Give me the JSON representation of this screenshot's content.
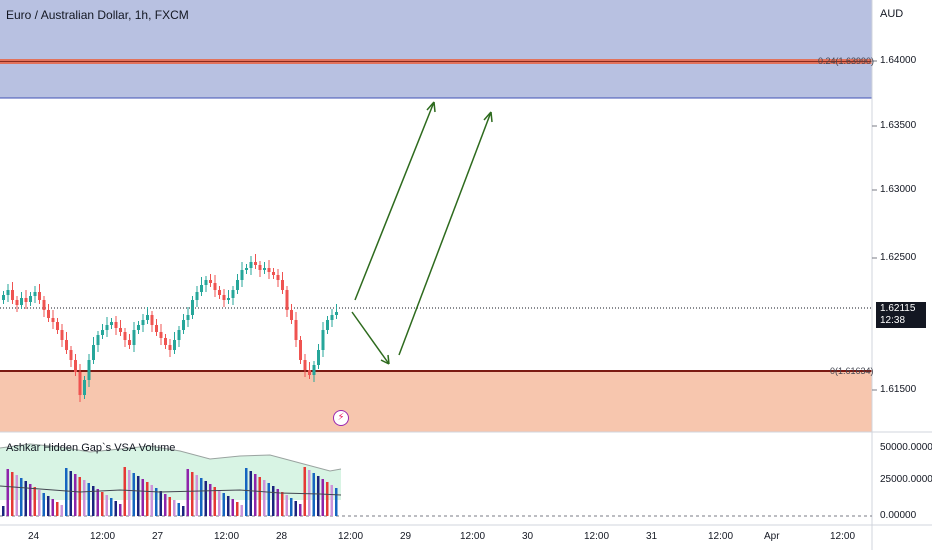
{
  "header": {
    "title": "Euro / Australian Dollar, 1h, FXCM",
    "currency": "AUD"
  },
  "indicator": {
    "title": "Ashkar Hidden Gap`s VSA Volume",
    "axis_labels": [
      "50000.00000",
      "25000.00000",
      "0.00000"
    ]
  },
  "price_axis": {
    "labels": [
      "1.64000",
      "1.63500",
      "1.63000",
      "1.62500",
      "1.61500"
    ],
    "last_price": "1.62115",
    "countdown": "12:38"
  },
  "time_axis": {
    "labels": [
      "24",
      "12:00",
      "27",
      "12:00",
      "28",
      "12:00",
      "29",
      "12:00",
      "30",
      "12:00",
      "31",
      "12:00",
      "Apr",
      "12:00"
    ]
  },
  "fib_levels": {
    "upper": "0.24(1.63990)",
    "lower": "0(1.61634)"
  },
  "colors": {
    "up": "#26a69a",
    "down": "#ef5350",
    "supply_zone": "#b4bedf",
    "demand_zone": "#f7c6ae",
    "arrow": "#2e6b1e"
  },
  "icons": {
    "flash": "lightning-icon"
  }
}
